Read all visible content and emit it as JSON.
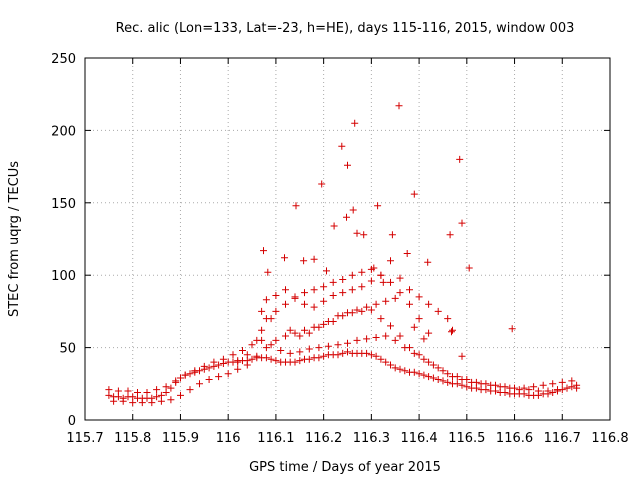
{
  "chart_data": {
    "type": "scatter",
    "title": "Rec. alic (Lon=133, Lat=-23, h=HE), days 115-116, 2015, window 003",
    "xlabel": "GPS time / Days of year 2015",
    "ylabel": "STEC from uqrg / TECUs",
    "xlim": [
      115.7,
      116.8
    ],
    "ylim": [
      0,
      250
    ],
    "xticks": [
      "115.7",
      "115.8",
      "115.9",
      "116",
      "116.1",
      "116.2",
      "116.3",
      "116.4",
      "116.5",
      "116.6",
      "116.7",
      "116.8"
    ],
    "yticks": [
      "0",
      "50",
      "100",
      "150",
      "200",
      "250"
    ],
    "grid": true,
    "legend": "none",
    "marker": "plus",
    "color": "#d40000",
    "series": [
      {
        "x": [
          115.75,
          115.76,
          115.77,
          115.78,
          115.79,
          115.8,
          115.81,
          115.82,
          115.83,
          115.84,
          115.85,
          115.86,
          115.87,
          115.88,
          115.89,
          115.9,
          115.91,
          115.92,
          115.93,
          115.94,
          115.95,
          115.96,
          115.97,
          115.98,
          115.99,
          116.0,
          116.01,
          116.02,
          116.03,
          116.04,
          116.05,
          116.06,
          116.07,
          116.08,
          116.09,
          116.1,
          116.11,
          116.12,
          116.13,
          116.14,
          116.15,
          116.16,
          116.17,
          116.18,
          116.19,
          116.2,
          116.21,
          116.22,
          116.23,
          116.24,
          116.25,
          116.26,
          116.27,
          116.28,
          116.29,
          116.3,
          116.31,
          116.32,
          116.33,
          116.34,
          116.35,
          116.36,
          116.37,
          116.38,
          116.39,
          116.4,
          116.41,
          116.42,
          116.43,
          116.44,
          116.45,
          116.46,
          116.47,
          116.48,
          116.49,
          116.5,
          116.51,
          116.52,
          116.53,
          116.54,
          116.55,
          116.56,
          116.57,
          116.58,
          116.59,
          116.6,
          116.61,
          116.62,
          116.63,
          116.64,
          116.65,
          116.66,
          116.67,
          116.68,
          116.69,
          116.7,
          116.71,
          116.72,
          116.73,
          115.75,
          115.77,
          115.79,
          115.81,
          115.83,
          115.85,
          115.87,
          115.89,
          115.91,
          115.93,
          115.95,
          115.97,
          115.99,
          116.01,
          116.03,
          116.05,
          116.07,
          116.09,
          116.11,
          116.13,
          116.15,
          116.17,
          116.19,
          116.21,
          116.23,
          116.25,
          116.27,
          116.29,
          116.31,
          116.33,
          116.35,
          116.37,
          116.39,
          116.41,
          116.43,
          116.45,
          116.47,
          116.49,
          116.51,
          116.53,
          116.55,
          116.57,
          116.59,
          116.61,
          116.63,
          116.65,
          116.67,
          116.69,
          116.71,
          116.73,
          115.76,
          115.78,
          115.8,
          115.82,
          115.84,
          115.86,
          115.88,
          115.9,
          115.92,
          115.94,
          115.96,
          115.98,
          116.0,
          116.02,
          116.04,
          116.06,
          116.08,
          116.1,
          116.12,
          116.14,
          116.16,
          116.18,
          116.2,
          116.22,
          116.24,
          116.26,
          116.28,
          116.3,
          116.32,
          116.34,
          116.36,
          116.38,
          116.4,
          116.42,
          116.44,
          116.46,
          116.48,
          116.5,
          116.52,
          116.54,
          116.56,
          116.58,
          116.6,
          116.62,
          116.64,
          116.66,
          116.68,
          116.7,
          116.72,
          116.02,
          116.04,
          116.06,
          116.07,
          116.08,
          116.1,
          116.12,
          116.14,
          116.16,
          116.18,
          116.2,
          116.22,
          116.24,
          116.26,
          116.28,
          116.3,
          116.32,
          116.34,
          116.36,
          116.38,
          116.4,
          116.42,
          116.07,
          116.09,
          116.13,
          116.15,
          116.17,
          116.19,
          116.21,
          116.23,
          116.25,
          116.27,
          116.29,
          116.31,
          116.33,
          116.35,
          116.39,
          116.41,
          116.47,
          116.49,
          116.08,
          116.1,
          116.12,
          116.14,
          116.16,
          116.18,
          116.2,
          116.22,
          116.24,
          116.26,
          116.28,
          116.3,
          116.32,
          116.34,
          116.36,
          116.38,
          116.4,
          116.42,
          116.44,
          116.46,
          116.074,
          116.083,
          116.118,
          116.142,
          116.158,
          116.18,
          116.196,
          116.206,
          116.222,
          116.238,
          116.25,
          116.265,
          116.27,
          116.284,
          116.305,
          116.313,
          116.325,
          116.344,
          116.358,
          116.375,
          116.39,
          116.418,
          116.465,
          116.485,
          116.49,
          116.505,
          116.595,
          116.468,
          116.248,
          116.262
        ],
        "y": [
          17,
          16,
          16,
          15,
          16,
          16,
          15,
          15,
          15,
          15,
          16,
          17,
          19,
          22,
          26,
          29,
          31,
          32,
          33,
          34,
          35,
          36,
          37,
          38,
          39,
          40,
          40,
          41,
          41,
          41,
          42,
          43,
          43,
          43,
          42,
          41,
          40,
          40,
          40,
          40,
          41,
          42,
          42,
          43,
          43,
          44,
          45,
          45,
          45,
          46,
          47,
          46,
          46,
          46,
          46,
          45,
          44,
          42,
          40,
          38,
          36,
          35,
          34,
          33,
          33,
          32,
          31,
          30,
          29,
          28,
          27,
          26,
          25,
          25,
          24,
          23,
          22,
          22,
          21,
          21,
          20,
          20,
          19,
          19,
          18,
          18,
          18,
          18,
          17,
          17,
          17,
          18,
          18,
          19,
          20,
          21,
          22,
          23,
          24,
          21,
          20,
          20,
          19,
          19,
          21,
          23,
          27,
          31,
          34,
          37,
          40,
          42,
          45,
          48,
          52,
          55,
          52,
          48,
          46,
          47,
          49,
          50,
          51,
          52,
          53,
          55,
          56,
          57,
          58,
          55,
          50,
          46,
          42,
          38,
          34,
          30,
          28,
          26,
          25,
          24,
          23,
          22,
          21,
          21,
          20,
          20,
          21,
          22,
          22,
          13,
          13,
          12,
          12,
          12,
          13,
          14,
          17,
          21,
          25,
          28,
          30,
          32,
          35,
          38,
          44,
          50,
          55,
          58,
          60,
          62,
          64,
          66,
          68,
          72,
          74,
          75,
          76,
          70,
          65,
          58,
          50,
          45,
          40,
          36,
          32,
          30,
          28,
          26,
          25,
          24,
          23,
          22,
          22,
          23,
          24,
          25,
          26,
          27,
          40,
          45,
          55,
          62,
          70,
          75,
          80,
          85,
          88,
          90,
          92,
          95,
          97,
          100,
          102,
          104,
          100,
          95,
          88,
          80,
          70,
          60,
          75,
          70,
          62,
          58,
          60,
          64,
          68,
          72,
          74,
          76,
          78,
          80,
          82,
          84,
          64,
          56,
          62,
          44,
          83,
          86,
          90,
          84,
          80,
          78,
          82,
          86,
          88,
          90,
          92,
          96,
          100,
          110,
          98,
          90,
          85,
          80,
          75,
          70,
          117,
          102,
          112,
          148,
          110,
          111,
          163,
          103,
          134,
          189,
          176,
          205,
          129,
          128,
          105,
          148,
          95,
          128,
          217,
          115,
          156,
          109,
          128,
          180,
          136,
          105,
          63,
          61,
          140,
          145
        ]
      }
    ]
  }
}
